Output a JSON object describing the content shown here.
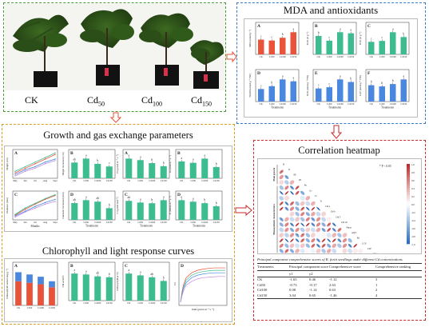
{
  "plants": {
    "labels": [
      "CK",
      "Cd",
      "Cd",
      "Cd"
    ],
    "subs": [
      "",
      "50",
      "100",
      "150"
    ]
  },
  "mda": {
    "title": "MDA and antioxidants",
    "xlabel": "Treatments",
    "categories": [
      "CK",
      "Cd50",
      "Cd100",
      "Cd150"
    ],
    "panels": [
      {
        "letter": "A",
        "ylabel": "MDA (nmol g⁻¹)",
        "color": "#e8533a",
        "values": [
          3.2,
          3.0,
          3.6,
          4.8
        ],
        "sig": [
          "c",
          "c",
          "b",
          "a"
        ]
      },
      {
        "letter": "B",
        "ylabel": "SOD (U g⁻¹)",
        "color": "#3cbc8f",
        "values": [
          3.5,
          2.6,
          4.2,
          4.0
        ],
        "sig": [
          "b",
          "c",
          "a",
          "a"
        ]
      },
      {
        "letter": "C",
        "ylabel": "POD (U g⁻¹)",
        "color": "#3cbc8f",
        "values": [
          2.6,
          2.8,
          4.6,
          3.6
        ],
        "sig": [
          "c",
          "c",
          "a",
          "b"
        ]
      },
      {
        "letter": "D",
        "ylabel": "NADH (nmol g⁻¹ FW)",
        "color": "#4a88e0",
        "values": [
          2.6,
          3.2,
          4.6,
          4.2
        ],
        "sig": [
          "c",
          "b",
          "a",
          "a"
        ]
      },
      {
        "letter": "E",
        "ylabel": "POD (nmol g⁻¹ FW)",
        "color": "#4a88e0",
        "values": [
          2.0,
          2.2,
          3.4,
          3.0
        ],
        "sig": [
          "c",
          "c",
          "a",
          "b"
        ]
      },
      {
        "letter": "F",
        "ylabel": "CAT (nmol g⁻¹ FW)",
        "color": "#4a88e0",
        "values": [
          2.8,
          2.6,
          3.0,
          3.8
        ],
        "sig": [
          "b",
          "b",
          "b",
          "a"
        ]
      }
    ]
  },
  "growth": {
    "title": "Growth and gas exchange parameters",
    "xlabel_months": "Months",
    "xlabel_treat": "Treatments",
    "months": [
      "May",
      "Jun",
      "Jul",
      "Aug",
      "Sept"
    ],
    "categories": [
      "CK",
      "Cd50",
      "Cd100",
      "Cd150"
    ],
    "line_panels": [
      {
        "letter": "A",
        "ylabel": "Height (cm)",
        "series": [
          [
            10,
            13,
            16,
            19,
            22
          ],
          [
            11,
            14,
            17,
            20,
            23
          ],
          [
            9,
            12,
            14,
            17,
            19
          ],
          [
            8,
            11,
            13,
            16,
            18
          ]
        ]
      },
      {
        "letter": "C",
        "ylabel": "Diameter (mm)",
        "series": [
          [
            4,
            5.5,
            6.8,
            8,
            9
          ],
          [
            4.2,
            5.8,
            7,
            8.2,
            9.2
          ],
          [
            3.8,
            5,
            6.2,
            7.2,
            8
          ],
          [
            3.5,
            4.8,
            5.8,
            6.8,
            7.5
          ]
        ]
      }
    ],
    "series_colors": [
      "#e8533a",
      "#3cbc8f",
      "#4a88e0",
      "#c08be0"
    ],
    "bar_panels": [
      {
        "letter": "B",
        "ylabel": "Height increment (cm)",
        "values": [
          12,
          15,
          11,
          9
        ],
        "sig": [
          "ab",
          "a",
          "b",
          "c"
        ]
      },
      {
        "letter": "D",
        "ylabel": "Diameter increment (mm)",
        "values": [
          4.6,
          5.4,
          5.0,
          3.2
        ],
        "sig": [
          "ab",
          "a",
          "ab",
          "b"
        ]
      },
      {
        "letter": "A",
        "ylabel": "Pn (μmol m⁻² s⁻¹)",
        "values": [
          13,
          12,
          10,
          8
        ],
        "sig": [
          "a",
          "a",
          "b",
          "b"
        ]
      },
      {
        "letter": "B",
        "ylabel": "Gs (mol m⁻² s⁻¹)",
        "values": [
          0.12,
          0.11,
          0.14,
          0.08
        ],
        "sig": [
          "a",
          "a",
          "a",
          "b"
        ]
      },
      {
        "letter": "C",
        "ylabel": "Ci (μmol mol⁻¹)",
        "values": [
          280,
          255,
          245,
          290
        ],
        "sig": [
          "ab",
          "a",
          "b",
          "a"
        ]
      },
      {
        "letter": "D",
        "ylabel": "Tr (mmol m⁻² s⁻¹)",
        "values": [
          2.6,
          2.4,
          2.2,
          1.8
        ],
        "sig": [
          "a",
          "a",
          "b",
          "b"
        ]
      }
    ],
    "bar_color": "#3cbc8f"
  },
  "chloro": {
    "title": "Chlorophyll and light response curves",
    "categories": [
      "CK",
      "Cd50",
      "Cd100",
      "Cd150"
    ],
    "stacked": {
      "letter": "A",
      "ylabel": "Chlorophyll content (mg g⁻¹)",
      "a": [
        1.6,
        1.5,
        1.4,
        1.2
      ],
      "b": [
        0.6,
        0.55,
        0.5,
        0.4
      ],
      "colors": [
        "#e8533a",
        "#4a88e0"
      ]
    },
    "ratio": {
      "letter": "B",
      "ylabel": "Chl a/Chl b",
      "values": [
        2.9,
        2.8,
        2.6,
        2.5
      ],
      "sig": [
        "a",
        "a",
        "ab",
        "b"
      ],
      "color": "#3cbc8f"
    },
    "total": {
      "letter": "C",
      "ylabel": "Chlorophyll (a+b)",
      "values": [
        2.2,
        2.05,
        1.9,
        1.6
      ],
      "sig": [
        "a",
        "a",
        "ab",
        "b"
      ],
      "color": "#3cbc8f"
    },
    "lrc": {
      "letter": "D",
      "xlabel": "PAR (μmol m⁻² s⁻¹)",
      "ylabel": "Pn",
      "par": [
        0,
        50,
        100,
        200,
        400,
        600,
        800,
        1000,
        1200,
        1400,
        1600
      ],
      "series": [
        [
          -1,
          3,
          6,
          9,
          11,
          12,
          12.5,
          12.8,
          13,
          13,
          13
        ],
        [
          -1,
          2.5,
          5,
          8,
          10,
          11,
          11.5,
          11.8,
          12,
          12,
          12
        ],
        [
          -1,
          2,
          4.5,
          7,
          9,
          10,
          10.5,
          10.8,
          11,
          11,
          11
        ],
        [
          -1,
          1.5,
          3.5,
          6,
          7.5,
          8.5,
          9,
          9.2,
          9.4,
          9.5,
          9.5
        ]
      ]
    }
  },
  "heatmap": {
    "title": "Correlation heatmap",
    "sig_note": "* P < 0.05",
    "groups": [
      "Plant growth",
      "Photosynthetic characteristics",
      "MDA and antioxidants"
    ],
    "variables": [
      "H",
      "D",
      "HI",
      "DI",
      "Pn",
      "Gs",
      "Ci",
      "Tr",
      "Chl a",
      "Chl b",
      "Chl T",
      "Chl a/b",
      "Pmax",
      "AQY",
      "Rd",
      "LCP",
      "LSP",
      "MDA",
      "SOD",
      "POD",
      "CAT",
      "NADH",
      "POD2"
    ],
    "scale": [
      "1.0",
      "0.8",
      "0.6",
      "0.4",
      "0.2",
      "0.0",
      "-0.2",
      "-0.4",
      "-0.6",
      "-0.8",
      "-1.0"
    ],
    "table_caption": "Principal component comprehensive scores of R. fortii seedlings under different Cd concentrations",
    "table_headers": [
      "Treatments",
      "Principal component score",
      "Comprehensive score",
      "Comprehensive ranking"
    ],
    "table_subheaders": [
      "y1",
      "y2"
    ],
    "table_rows": [
      {
        "t": "CK",
        "y1": "-1.65",
        "y2": "0.46",
        "cs": "-1.12",
        "r": "3"
      },
      {
        "t": "Cd50",
        "y1": "-0.73",
        "y2": "-0.17",
        "cs": "2.63",
        "r": "1"
      },
      {
        "t": "Cd100",
        "y1": "0.08",
        "y2": "-1.14",
        "cs": "0.63",
        "r": "2"
      },
      {
        "t": "Cd150",
        "y1": "3.04",
        "y2": "0.65",
        "cs": "-1.46",
        "r": "4"
      }
    ]
  }
}
